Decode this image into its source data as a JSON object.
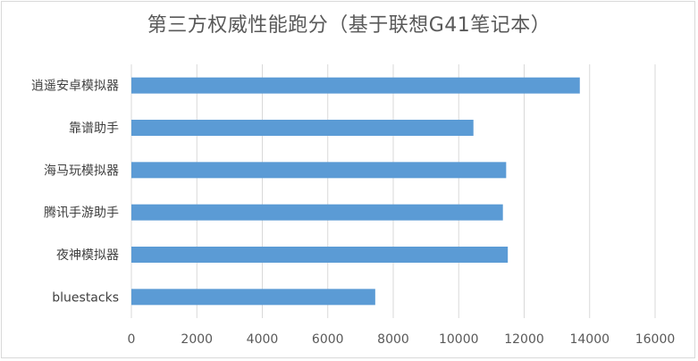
{
  "chart_data": {
    "type": "bar",
    "orientation": "horizontal",
    "title": "第三方权威性能跑分（基于联想G41笔记本）",
    "categories": [
      "逍遥安卓模拟器",
      "靠谱助手",
      "海马玩模拟器",
      "腾讯手游助手",
      "夜神模拟器",
      "bluestacks"
    ],
    "values": [
      13700,
      10450,
      11450,
      11350,
      11500,
      7450
    ],
    "xlim": [
      0,
      16000
    ],
    "xticks": [
      0,
      2000,
      4000,
      6000,
      8000,
      10000,
      12000,
      14000,
      16000
    ],
    "grid": true,
    "legend": "none",
    "bar_color": "#5b9bd5",
    "grid_color": "#d9d9d9"
  }
}
